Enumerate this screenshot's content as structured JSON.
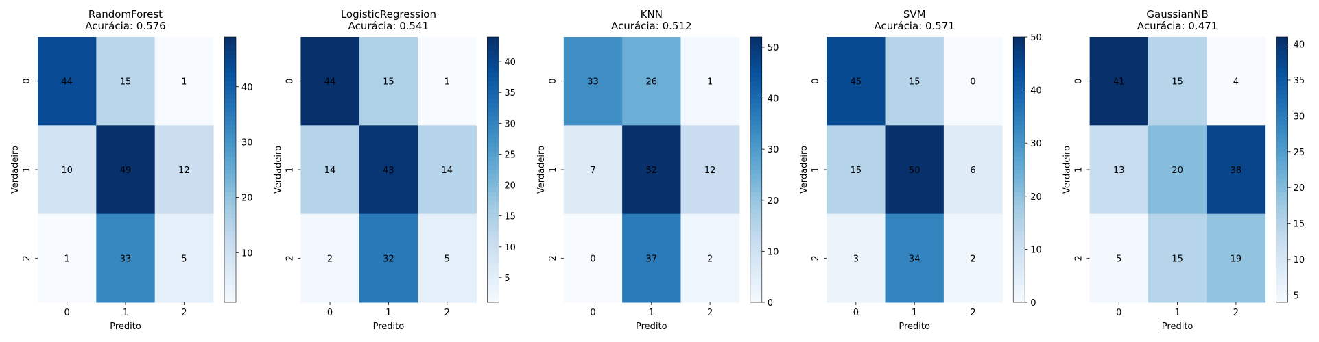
{
  "chart_data": [
    {
      "type": "heatmap",
      "title": "RandomForest",
      "subtitle": "Acurácia: 0.576",
      "xlabel": "Predito",
      "ylabel": "Verdadeiro",
      "x_ticks": [
        "0",
        "1",
        "2"
      ],
      "y_ticks": [
        "0",
        "1",
        "2"
      ],
      "matrix": [
        [
          44,
          15,
          1
        ],
        [
          10,
          49,
          12
        ],
        [
          1,
          33,
          5
        ]
      ],
      "colorbar_ticks": [
        10,
        20,
        30,
        40
      ],
      "colorscale": "Blues"
    },
    {
      "type": "heatmap",
      "title": "LogisticRegression",
      "subtitle": "Acurácia: 0.541",
      "xlabel": "Predito",
      "ylabel": "Verdadeiro",
      "x_ticks": [
        "0",
        "1",
        "2"
      ],
      "y_ticks": [
        "0",
        "1",
        "2"
      ],
      "matrix": [
        [
          44,
          15,
          1
        ],
        [
          14,
          43,
          14
        ],
        [
          2,
          32,
          5
        ]
      ],
      "colorbar_ticks": [
        5,
        10,
        15,
        20,
        25,
        30,
        35,
        40
      ],
      "colorscale": "Blues"
    },
    {
      "type": "heatmap",
      "title": "KNN",
      "subtitle": "Acurácia: 0.512",
      "xlabel": "Predito",
      "ylabel": "Verdadeiro",
      "x_ticks": [
        "0",
        "1",
        "2"
      ],
      "y_ticks": [
        "0",
        "1",
        "2"
      ],
      "matrix": [
        [
          33,
          26,
          1
        ],
        [
          7,
          52,
          12
        ],
        [
          0,
          37,
          2
        ]
      ],
      "colorbar_ticks": [
        0,
        10,
        20,
        30,
        40,
        50
      ],
      "colorscale": "Blues"
    },
    {
      "type": "heatmap",
      "title": "SVM",
      "subtitle": "Acurácia: 0.571",
      "xlabel": "Predito",
      "ylabel": "Verdadeiro",
      "x_ticks": [
        "0",
        "1",
        "2"
      ],
      "y_ticks": [
        "0",
        "1",
        "2"
      ],
      "matrix": [
        [
          45,
          15,
          0
        ],
        [
          15,
          50,
          6
        ],
        [
          3,
          34,
          2
        ]
      ],
      "colorbar_ticks": [
        0,
        10,
        20,
        30,
        40,
        50
      ],
      "colorscale": "Blues"
    },
    {
      "type": "heatmap",
      "title": "GaussianNB",
      "subtitle": "Acurácia: 0.471",
      "xlabel": "Predito",
      "ylabel": "Verdadeiro",
      "x_ticks": [
        "0",
        "1",
        "2"
      ],
      "y_ticks": [
        "0",
        "1",
        "2"
      ],
      "matrix": [
        [
          41,
          15,
          4
        ],
        [
          13,
          20,
          38
        ],
        [
          5,
          15,
          19
        ]
      ],
      "colorbar_ticks": [
        5,
        10,
        15,
        20,
        25,
        30,
        35,
        40
      ],
      "colorscale": "Blues"
    }
  ]
}
